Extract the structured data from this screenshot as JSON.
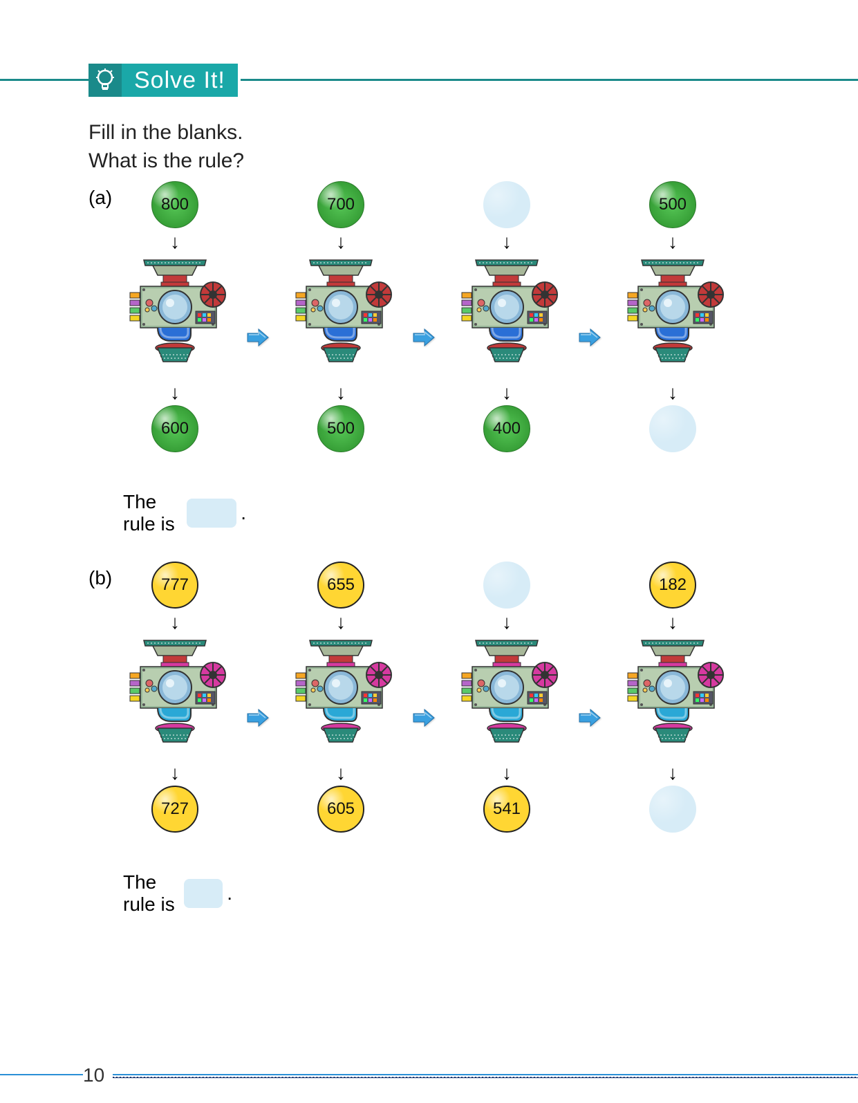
{
  "header": {
    "title": "Solve It!",
    "icon": "bulb-icon"
  },
  "instructions": [
    "Fill in the blanks.",
    "What is the rule?"
  ],
  "problems": {
    "a": {
      "label": "(a)",
      "ball_color": "#3fb33f",
      "ball_border": "#2a7a2a",
      "ball_class": "ball-green",
      "machine_accent": "#c23a3a",
      "machine_tube": "#2a6fd6",
      "inputs": [
        "800",
        "700",
        "",
        "500"
      ],
      "outputs": [
        "600",
        "500",
        "400",
        ""
      ],
      "rule_prefix": "The rule is",
      "rule_suffix": ".",
      "blank_color": "#d7ecf7"
    },
    "b": {
      "label": "(b)",
      "ball_color": "#ffd633",
      "ball_border": "#222222",
      "ball_class": "ball-yellow",
      "machine_accent": "#d63aa0",
      "machine_tube": "#2aa8d6",
      "inputs": [
        "777",
        "655",
        "",
        "182"
      ],
      "outputs": [
        "727",
        "605",
        "541",
        ""
      ],
      "rule_prefix": "The rule is",
      "rule_suffix": ".",
      "blank_color": "#d7ecf7"
    }
  },
  "page_number": "10",
  "colors": {
    "header_teal_dark": "#1a8a8a",
    "header_teal": "#1aa8a8",
    "arrow_blue": "#2a8fd6",
    "footer_blue": "#2a8fd6",
    "footer_navy": "#14306b",
    "blank_blue": "#d7ecf7"
  }
}
